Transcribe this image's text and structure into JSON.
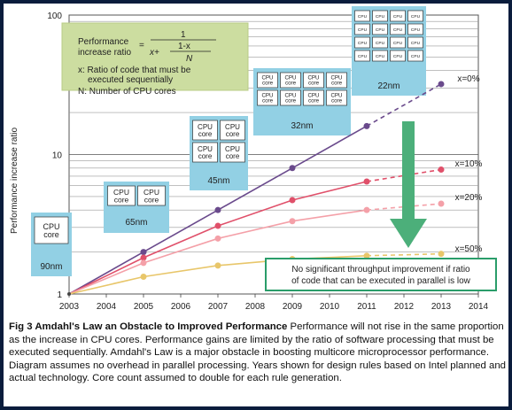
{
  "chart_data": {
    "type": "line",
    "title": "Amdahl's Law an Obstacle to Improved Performance",
    "xlabel": "",
    "ylabel": "Performance increase ratio",
    "yscale": "log",
    "ylim": [
      1,
      100
    ],
    "xlim": [
      2003,
      2014
    ],
    "x_ticks": [
      "2003",
      "2004",
      "2005",
      "2006",
      "2007",
      "2008",
      "2009",
      "2010",
      "2011",
      "2012",
      "2013",
      "2014"
    ],
    "y_ticks": [
      "1",
      "10",
      "100"
    ],
    "x": [
      2003,
      2005,
      2007,
      2009,
      2011,
      2013
    ],
    "series": [
      {
        "name": "x=0%",
        "values": [
          1,
          2,
          4,
          8,
          16,
          32
        ],
        "color": "#6a4a8c",
        "dashed_from": 2011
      },
      {
        "name": "x=10%",
        "values": [
          1,
          1.82,
          3.08,
          4.71,
          6.4,
          7.8
        ],
        "color": "#e0506a",
        "dashed_from": 2011
      },
      {
        "name": "x=20%",
        "values": [
          1,
          1.67,
          2.5,
          3.33,
          4.0,
          4.44
        ],
        "color": "#f4a0a8",
        "dashed_from": 2011
      },
      {
        "name": "x=50%",
        "values": [
          1,
          1.33,
          1.6,
          1.78,
          1.88,
          1.94
        ],
        "color": "#e8c66a",
        "dashed_from": 2011
      }
    ],
    "nodes": [
      {
        "label": "90nm",
        "cores": 1
      },
      {
        "label": "65nm",
        "cores": 2
      },
      {
        "label": "45nm",
        "cores": 4
      },
      {
        "label": "32nm",
        "cores": 8
      },
      {
        "label": "22nm",
        "cores": 16
      }
    ],
    "core_label_big": "CPU core",
    "core_label_small": "CPU core",
    "core_label_tiny": "CPU"
  },
  "formula": {
    "left1": "Performance",
    "left2": "increase ratio",
    "equals": "=",
    "numerator": "1",
    "x_plus": "x+",
    "one_minus_x": "1-x",
    "n": "N",
    "x_def_1": "x: Ratio of code that must be",
    "x_def_2": "executed sequentially",
    "n_def": "N: Number of CPU cores"
  },
  "note": {
    "line1": "No significant throughput improvement if ratio",
    "line2": "of code that can be executed in parallel is low"
  },
  "caption": {
    "title": "Fig 3 Amdahl's Law an Obstacle to Improved Performance",
    "body": "Performance will not rise in the same proportion as the increase in CPU cores. Performance gains are limited by the ratio of software processing that must be executed sequentially. Amdahl's Law is a major obstacle in boosting multicore microprocessor performance. Diagram assumes no overhead in parallel processing. Years shown for design rules based on Intel planned and actual technology. Core count assumed to double for each rule generation."
  }
}
